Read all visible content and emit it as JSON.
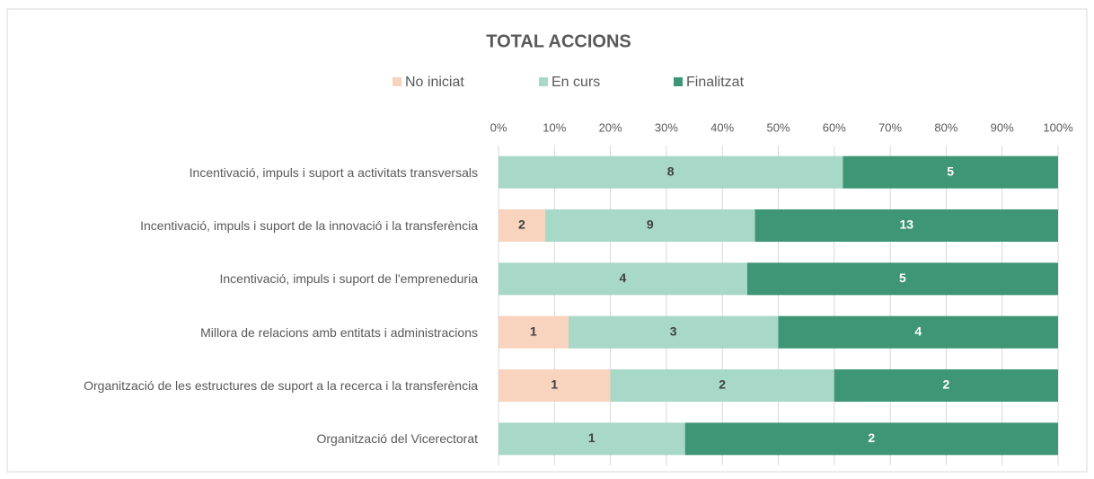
{
  "chart_data": {
    "type": "bar",
    "orientation": "horizontal",
    "stacked": "percent",
    "title": "TOTAL ACCIONS",
    "categories": [
      "Incentivació, impuls i suport a activitats transversals",
      "Incentivació, impuls i suport de la innovació i la transferència",
      "Incentivació, impuls i suport de l'empreneduria",
      "Millora de relacions amb entitats i administracions",
      "Organització de les estructures de suport a la recerca i la transferència",
      "Organització del Vicerectorat"
    ],
    "series": [
      {
        "name": "No iniciat",
        "color": "#f8d3bd",
        "values": [
          null,
          2,
          null,
          1,
          1,
          null
        ]
      },
      {
        "name": "En curs",
        "color": "#a8d8c8",
        "values": [
          8,
          9,
          4,
          3,
          2,
          1
        ]
      },
      {
        "name": "Finalitzat",
        "color": "#3e9677",
        "values": [
          5,
          13,
          5,
          4,
          2,
          2
        ]
      }
    ],
    "xlim": [
      0,
      100
    ],
    "xticks": [
      {
        "value": 0,
        "label": "0%"
      },
      {
        "value": 10,
        "label": "10%"
      },
      {
        "value": 20,
        "label": "20%"
      },
      {
        "value": 30,
        "label": "30%"
      },
      {
        "value": 40,
        "label": "40%"
      },
      {
        "value": 50,
        "label": "50%"
      },
      {
        "value": 60,
        "label": "60%"
      },
      {
        "value": 70,
        "label": "70%"
      },
      {
        "value": 80,
        "label": "80%"
      },
      {
        "value": 90,
        "label": "90%"
      },
      {
        "value": 100,
        "label": "100%"
      }
    ],
    "grid": true,
    "legend": "top"
  }
}
